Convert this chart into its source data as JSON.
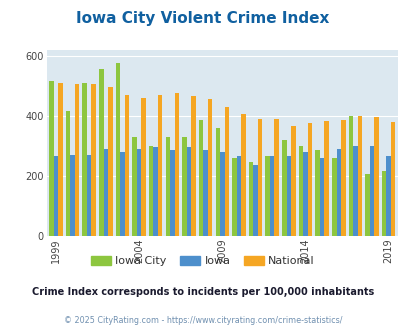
{
  "title": "Iowa City Violent Crime Index",
  "title_color": "#1060a0",
  "subtitle": "Crime Index corresponds to incidents per 100,000 inhabitants",
  "subtitle_color": "#1a1a2e",
  "copyright": "© 2025 CityRating.com - https://www.cityrating.com/crime-statistics/",
  "copyright_color": "#7090b0",
  "years": [
    1999,
    2000,
    2001,
    2002,
    2003,
    2004,
    2005,
    2006,
    2007,
    2008,
    2009,
    2010,
    2011,
    2012,
    2013,
    2014,
    2015,
    2016,
    2017,
    2018,
    2019
  ],
  "iowa_city": [
    515,
    415,
    510,
    555,
    575,
    330,
    300,
    330,
    330,
    385,
    360,
    260,
    245,
    265,
    320,
    300,
    285,
    260,
    400,
    205,
    215
  ],
  "iowa": [
    265,
    270,
    270,
    290,
    280,
    290,
    295,
    285,
    295,
    285,
    280,
    265,
    235,
    265,
    265,
    280,
    260,
    290,
    300,
    300,
    265
  ],
  "national": [
    510,
    505,
    505,
    495,
    470,
    460,
    470,
    475,
    465,
    455,
    430,
    405,
    390,
    390,
    365,
    375,
    383,
    387,
    400,
    395,
    380
  ],
  "iowa_city_color": "#8dc63f",
  "iowa_color": "#4d8fcc",
  "national_color": "#f5a623",
  "ylim": [
    0,
    620
  ],
  "yticks": [
    0,
    200,
    400,
    600
  ],
  "plot_bg": "#dce8f0",
  "bar_width": 0.27,
  "highlight_years": [
    1999,
    2004,
    2009,
    2014,
    2019
  ]
}
